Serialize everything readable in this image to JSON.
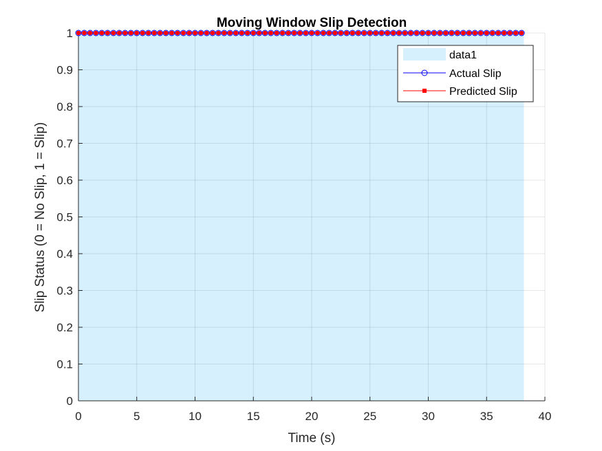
{
  "chart_data": {
    "type": "line",
    "title": "Moving Window Slip Detection",
    "xlabel": "Time (s)",
    "ylabel": "Slip Status (0 = No Slip, 1 = Slip)",
    "xlim": [
      0,
      40
    ],
    "ylim": [
      0,
      1
    ],
    "xticks": [
      0,
      5,
      10,
      15,
      20,
      25,
      30,
      35,
      40
    ],
    "yticks": [
      0,
      0.1,
      0.2,
      0.3,
      0.4,
      0.5,
      0.6,
      0.7,
      0.8,
      0.9,
      1
    ],
    "xtick_labels": [
      "0",
      "5",
      "10",
      "15",
      "20",
      "25",
      "30",
      "35",
      "40"
    ],
    "ytick_labels": [
      "0",
      "0.1",
      "0.2",
      "0.3",
      "0.4",
      "0.5",
      "0.6",
      "0.7",
      "0.8",
      "0.9",
      "1"
    ],
    "grid": true,
    "legend_position": "top-right",
    "area": {
      "name": "data1",
      "x_start": 0,
      "x_end": 38.2,
      "value": 1,
      "color": "#d6f0fe"
    },
    "series": [
      {
        "name": "Actual Slip",
        "marker": "circle",
        "color": "#0000ff",
        "x_start": 0,
        "x_step": 0.5,
        "count": 77,
        "value": 1
      },
      {
        "name": "Predicted Slip",
        "marker": "square",
        "color": "#ff0000",
        "x_start": 0,
        "x_step": 0.5,
        "count": 77,
        "value": 1
      }
    ]
  }
}
